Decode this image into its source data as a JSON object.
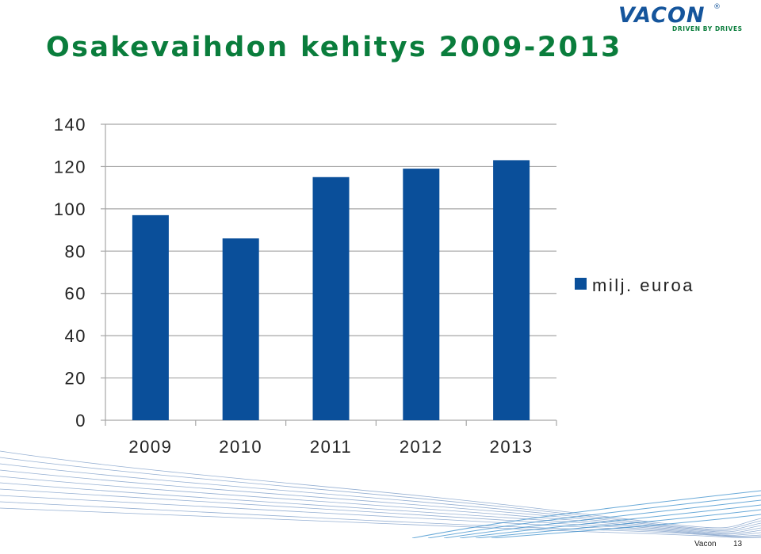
{
  "slide": {
    "title": "Osakevaihdon kehitys 2009-2013",
    "footer_company": "Vacon",
    "page_number": "13"
  },
  "logo": {
    "word": "VACON",
    "registered": "®",
    "tagline": "DRIVEN BY DRIVES",
    "colors": {
      "word": "#15559c",
      "tagline": "#0a7d3c"
    }
  },
  "colors": {
    "title": "#0a7d3c",
    "bar": "#0a4f9a",
    "grid": "#a6a6a6"
  },
  "chart_data": {
    "type": "bar",
    "categories": [
      "2009",
      "2010",
      "2011",
      "2012",
      "2013"
    ],
    "series": [
      {
        "name": "milj. euroa",
        "values": [
          97,
          86,
          115,
          119,
          123
        ]
      }
    ],
    "yticks": [
      "0",
      "20",
      "40",
      "60",
      "80",
      "100",
      "120",
      "140"
    ],
    "ylim": [
      0,
      140
    ],
    "grid": true,
    "legend_position": "right",
    "title": "",
    "xlabel": "",
    "ylabel": ""
  }
}
